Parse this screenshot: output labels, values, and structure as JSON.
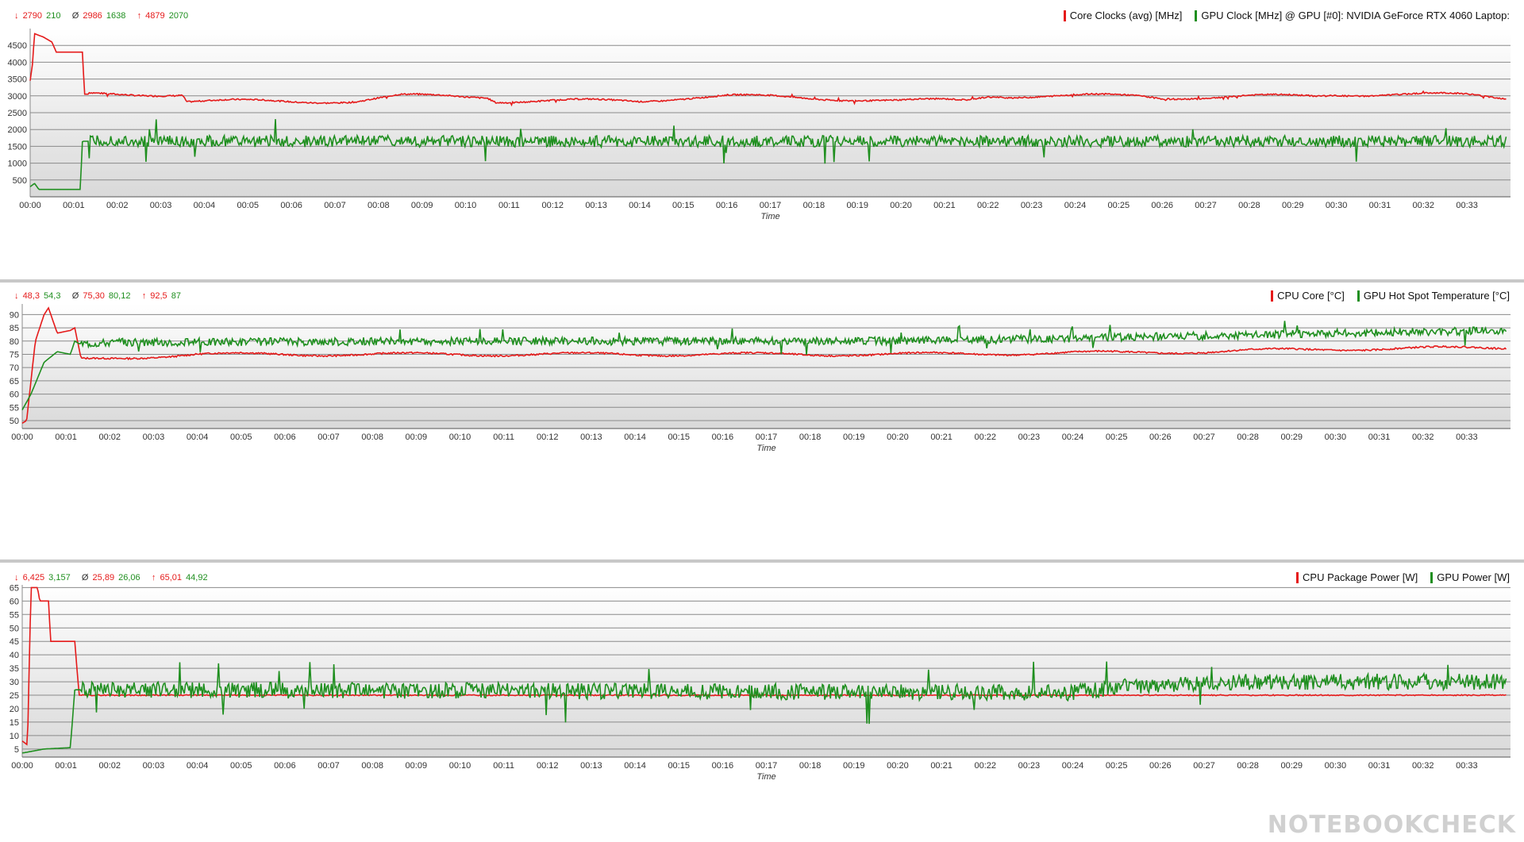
{
  "watermark": "NOTEBOOKCHECK",
  "chart_data": [
    {
      "type": "line",
      "id": "clocks",
      "xlabel": "Time",
      "ylabel": "",
      "x_ticks": [
        "00:00",
        "00:01",
        "00:02",
        "00:03",
        "00:04",
        "00:05",
        "00:06",
        "00:07",
        "00:08",
        "00:09",
        "00:10",
        "00:11",
        "00:12",
        "00:13",
        "00:14",
        "00:15",
        "00:16",
        "00:17",
        "00:18",
        "00:19",
        "00:20",
        "00:21",
        "00:22",
        "00:23",
        "00:24",
        "00:25",
        "00:26",
        "00:27",
        "00:28",
        "00:29",
        "00:30",
        "00:31",
        "00:32",
        "00:33"
      ],
      "xlim": [
        0,
        34
      ],
      "ylim": [
        0,
        5000
      ],
      "y_ticks": [
        500,
        1000,
        1500,
        2000,
        2500,
        3000,
        3500,
        4000,
        4500
      ],
      "stats": {
        "min_prefix": "↓",
        "avg_prefix": "Ø",
        "max_prefix": "↑",
        "min": [
          "2790",
          "210"
        ],
        "avg": [
          "2986",
          "1638"
        ],
        "max": [
          "4879",
          "2070"
        ]
      },
      "series": [
        {
          "name": "Core Clocks (avg) [MHz]",
          "color": "#e51a1a",
          "base": 2950,
          "noise": 20,
          "wave": 110,
          "key_points": [
            [
              0,
              3450
            ],
            [
              0.05,
              3900
            ],
            [
              0.1,
              4850
            ],
            [
              0.3,
              4750
            ],
            [
              0.5,
              4600
            ],
            [
              0.6,
              4300
            ],
            [
              1.2,
              4300
            ],
            [
              1.25,
              3050
            ],
            [
              3.5,
              3050
            ],
            [
              3.6,
              2850
            ],
            [
              6,
              2830
            ],
            [
              7.5,
              2850
            ],
            [
              8.5,
              3000
            ],
            [
              10.5,
              2980
            ],
            [
              10.7,
              2850
            ],
            [
              14,
              2850
            ],
            [
              15,
              2950
            ],
            [
              16,
              3000
            ],
            [
              19,
              2900
            ],
            [
              20,
              2850
            ],
            [
              21.5,
              2870
            ],
            [
              22,
              3000
            ],
            [
              25.5,
              3000
            ],
            [
              26,
              2950
            ],
            [
              29.5,
              3000
            ],
            [
              30,
              3050
            ],
            [
              33,
              3030
            ],
            [
              33.9,
              2950
            ]
          ]
        },
        {
          "name": "GPU Clock [MHz] @ GPU [#0]: NVIDIA GeForce RTX 4060 Laptop:",
          "color": "#1f8f1f",
          "base": 1700,
          "noise": 170,
          "wave": 0,
          "key_points": [
            [
              0,
              300
            ],
            [
              0.1,
              400
            ],
            [
              0.2,
              220
            ],
            [
              1.15,
              220
            ],
            [
              1.2,
              1650
            ],
            [
              33.9,
              1650
            ]
          ]
        }
      ]
    },
    {
      "type": "line",
      "id": "temps",
      "xlabel": "Time",
      "ylabel": "",
      "x_ticks": [
        "00:00",
        "00:01",
        "00:02",
        "00:03",
        "00:04",
        "00:05",
        "00:06",
        "00:07",
        "00:08",
        "00:09",
        "00:10",
        "00:11",
        "00:12",
        "00:13",
        "00:14",
        "00:15",
        "00:16",
        "00:17",
        "00:18",
        "00:19",
        "00:20",
        "00:21",
        "00:22",
        "00:23",
        "00:24",
        "00:25",
        "00:26",
        "00:27",
        "00:28",
        "00:29",
        "00:30",
        "00:31",
        "00:32",
        "00:33"
      ],
      "xlim": [
        0,
        34
      ],
      "ylim": [
        47,
        94
      ],
      "y_ticks": [
        50,
        55,
        60,
        65,
        70,
        75,
        80,
        85,
        90
      ],
      "stats": {
        "min_prefix": "↓",
        "avg_prefix": "Ø",
        "max_prefix": "↑",
        "min": [
          "48,3",
          "54,3"
        ],
        "avg": [
          "75,30",
          "80,12"
        ],
        "max": [
          "92,5",
          "87"
        ]
      },
      "series": [
        {
          "name": "CPU Core [°C]",
          "color": "#e51a1a",
          "base": 75,
          "noise": 0.3,
          "wave": 1.2,
          "key_points": [
            [
              0,
              49
            ],
            [
              0.1,
              50
            ],
            [
              0.3,
              80
            ],
            [
              0.5,
              90
            ],
            [
              0.6,
              92.5
            ],
            [
              0.8,
              83
            ],
            [
              1.1,
              84
            ],
            [
              1.2,
              85
            ],
            [
              1.35,
              73
            ],
            [
              2,
              73.5
            ],
            [
              4,
              75
            ],
            [
              8,
              75
            ],
            [
              12,
              75
            ],
            [
              16,
              75
            ],
            [
              20,
              75
            ],
            [
              24,
              75.5
            ],
            [
              27,
              76
            ],
            [
              30,
              77
            ],
            [
              33.9,
              77.5
            ]
          ]
        },
        {
          "name": "GPU Hot Spot Temperature [°C]",
          "color": "#1f8f1f",
          "base": 80,
          "noise": 1.5,
          "wave": 0,
          "key_points": [
            [
              0,
              54
            ],
            [
              0.2,
              60
            ],
            [
              0.5,
              72
            ],
            [
              0.8,
              76
            ],
            [
              1.1,
              75
            ],
            [
              1.2,
              80
            ],
            [
              1.3,
              79
            ],
            [
              2,
              79.5
            ],
            [
              10,
              80
            ],
            [
              20,
              80
            ],
            [
              24,
              81
            ],
            [
              27,
              82
            ],
            [
              30,
              83
            ],
            [
              33.9,
              84
            ]
          ]
        }
      ]
    },
    {
      "type": "line",
      "id": "power",
      "xlabel": "Time",
      "ylabel": "",
      "x_ticks": [
        "00:00",
        "00:01",
        "00:02",
        "00:03",
        "00:04",
        "00:05",
        "00:06",
        "00:07",
        "00:08",
        "00:09",
        "00:10",
        "00:11",
        "00:12",
        "00:13",
        "00:14",
        "00:15",
        "00:16",
        "00:17",
        "00:18",
        "00:19",
        "00:20",
        "00:21",
        "00:22",
        "00:23",
        "00:24",
        "00:25",
        "00:26",
        "00:27",
        "00:28",
        "00:29",
        "00:30",
        "00:31",
        "00:32",
        "00:33"
      ],
      "xlim": [
        0,
        34
      ],
      "ylim": [
        2,
        66
      ],
      "y_ticks": [
        5,
        10,
        15,
        20,
        25,
        30,
        35,
        40,
        45,
        50,
        55,
        60,
        65
      ],
      "stats": {
        "min_prefix": "↓",
        "avg_prefix": "Ø",
        "max_prefix": "↑",
        "min": [
          "6,425",
          "3,157"
        ],
        "avg": [
          "25,89",
          "26,06"
        ],
        "max": [
          "65,01",
          "44,92"
        ]
      },
      "series": [
        {
          "name": "CPU Package Power [W]",
          "color": "#e51a1a",
          "base": 25,
          "noise": 0.2,
          "wave": 0,
          "key_points": [
            [
              0,
              8
            ],
            [
              0.12,
              6.5
            ],
            [
              0.2,
              65
            ],
            [
              0.35,
              65
            ],
            [
              0.4,
              60
            ],
            [
              0.6,
              60
            ],
            [
              0.65,
              45
            ],
            [
              1.2,
              45
            ],
            [
              1.3,
              25
            ],
            [
              33.9,
              25
            ]
          ]
        },
        {
          "name": "GPU Power [W]",
          "color": "#1f8f1f",
          "base": 26,
          "noise": 3,
          "wave": 0,
          "key_points": [
            [
              0,
              3.5
            ],
            [
              0.5,
              5
            ],
            [
              1.1,
              5.5
            ],
            [
              1.2,
              27
            ],
            [
              24,
              26
            ],
            [
              25,
              28
            ],
            [
              28,
              30
            ],
            [
              33.9,
              30
            ]
          ]
        }
      ]
    }
  ]
}
